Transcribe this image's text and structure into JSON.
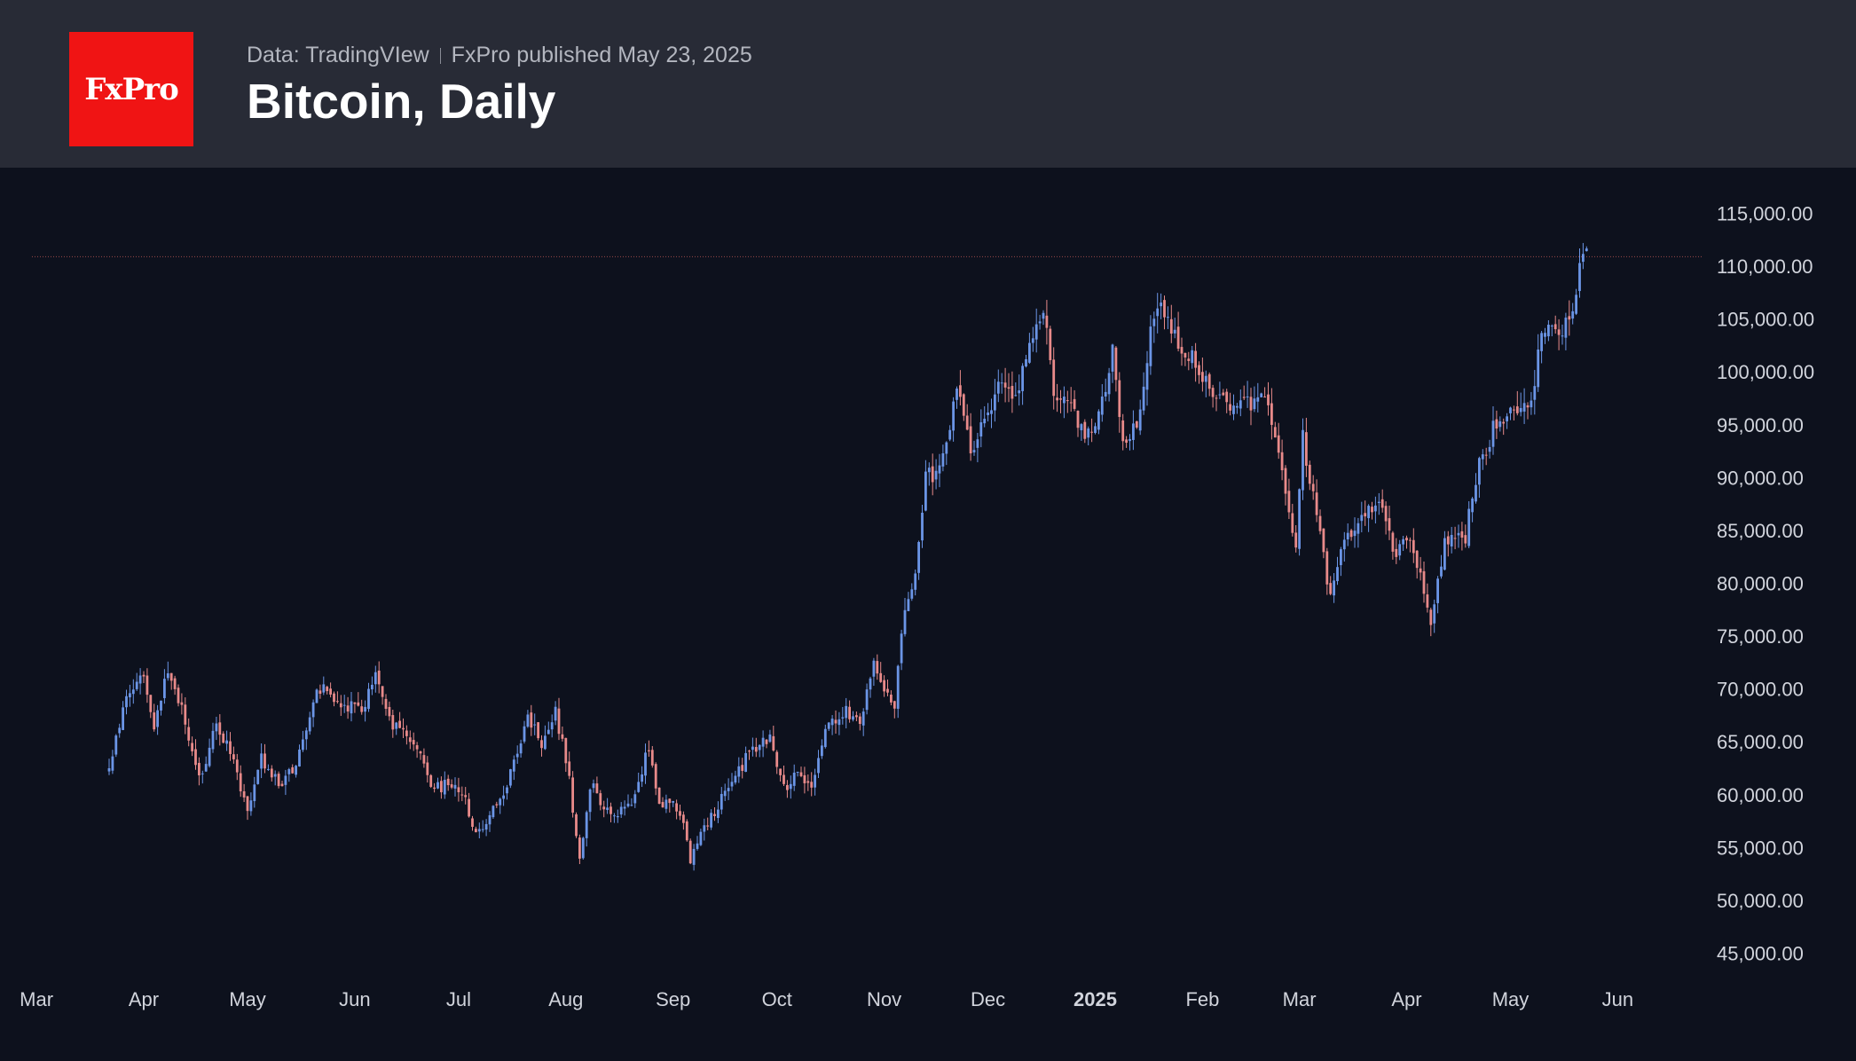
{
  "header": {
    "logo_text": "FxPro",
    "source_text": "Data: TradingVIew",
    "publisher_text": "FxPro published May 23, 2025",
    "title": "Bitcoin, Daily"
  },
  "colors": {
    "background": "#0d111d",
    "header_bg": "#282b36",
    "logo_bg": "#f01414",
    "up_candle": "#6b95e6",
    "down_candle": "#e88a8a",
    "axis_text": "#d1d4dc",
    "price_line": "#9b4a4a"
  },
  "chart_data": {
    "type": "candlestick",
    "title": "Bitcoin, Daily",
    "y_axis": {
      "ticks": [
        "115,000.00",
        "110,000.00",
        "105,000.00",
        "100,000.00",
        "95,000.00",
        "90,000.00",
        "85,000.00",
        "80,000.00",
        "75,000.00",
        "70,000.00",
        "65,000.00",
        "60,000.00",
        "55,000.00",
        "50,000.00",
        "45,000.00"
      ],
      "range": [
        42000,
        121000
      ]
    },
    "x_axis": {
      "labels": [
        "Mar",
        "Apr",
        "May",
        "Jun",
        "Jul",
        "Aug",
        "Sep",
        "Oct",
        "Nov",
        "Dec",
        "2025",
        "Feb",
        "Mar",
        "Apr",
        "May",
        "Jun"
      ],
      "bold_label": "2025",
      "range": [
        "2024-03-19",
        "2025-06-05"
      ]
    },
    "last_price_line": 110900,
    "close_anchors": [
      [
        "2024-03-22",
        62500
      ],
      [
        "2024-03-27",
        69500
      ],
      [
        "2024-04-01",
        71000
      ],
      [
        "2024-04-04",
        66500
      ],
      [
        "2024-04-08",
        72000
      ],
      [
        "2024-04-13",
        67000
      ],
      [
        "2024-04-17",
        61500
      ],
      [
        "2024-04-22",
        66500
      ],
      [
        "2024-04-26",
        64000
      ],
      [
        "2024-05-01",
        58000
      ],
      [
        "2024-05-05",
        63500
      ],
      [
        "2024-05-10",
        61000
      ],
      [
        "2024-05-15",
        62500
      ],
      [
        "2024-05-21",
        70500
      ],
      [
        "2024-05-27",
        68500
      ],
      [
        "2024-06-03",
        68000
      ],
      [
        "2024-06-07",
        71500
      ],
      [
        "2024-06-11",
        67000
      ],
      [
        "2024-06-18",
        65000
      ],
      [
        "2024-06-24",
        60500
      ],
      [
        "2024-06-28",
        61000
      ],
      [
        "2024-07-03",
        59500
      ],
      [
        "2024-07-06",
        56000
      ],
      [
        "2024-07-14",
        60000
      ],
      [
        "2024-07-21",
        67500
      ],
      [
        "2024-07-25",
        65000
      ],
      [
        "2024-07-29",
        68000
      ],
      [
        "2024-08-02",
        61500
      ],
      [
        "2024-08-05",
        53500
      ],
      [
        "2024-08-08",
        61000
      ],
      [
        "2024-08-14",
        58000
      ],
      [
        "2024-08-20",
        59500
      ],
      [
        "2024-08-25",
        64500
      ],
      [
        "2024-08-28",
        59500
      ],
      [
        "2024-09-03",
        58500
      ],
      [
        "2024-09-06",
        54000
      ],
      [
        "2024-09-12",
        58000
      ],
      [
        "2024-09-17",
        60500
      ],
      [
        "2024-09-23",
        64000
      ],
      [
        "2024-09-29",
        65500
      ],
      [
        "2024-10-03",
        60500
      ],
      [
        "2024-10-07",
        62500
      ],
      [
        "2024-10-11",
        60500
      ],
      [
        "2024-10-15",
        66500
      ],
      [
        "2024-10-21",
        68000
      ],
      [
        "2024-10-25",
        66500
      ],
      [
        "2024-10-29",
        72500
      ],
      [
        "2024-11-04",
        67500
      ],
      [
        "2024-11-06",
        75500
      ],
      [
        "2024-11-10",
        80500
      ],
      [
        "2024-11-13",
        90000
      ],
      [
        "2024-11-17",
        90500
      ],
      [
        "2024-11-22",
        98500
      ],
      [
        "2024-11-26",
        92500
      ],
      [
        "2024-12-01",
        96500
      ],
      [
        "2024-12-05",
        99000
      ],
      [
        "2024-12-09",
        97500
      ],
      [
        "2024-12-12",
        101000
      ],
      [
        "2024-12-17",
        106500
      ],
      [
        "2024-12-20",
        97000
      ],
      [
        "2024-12-24",
        98000
      ],
      [
        "2024-12-27",
        94500
      ],
      [
        "2025-01-01",
        94500
      ],
      [
        "2025-01-06",
        102000
      ],
      [
        "2025-01-09",
        93500
      ],
      [
        "2025-01-13",
        94500
      ],
      [
        "2025-01-17",
        104000
      ],
      [
        "2025-01-20",
        106000
      ],
      [
        "2025-01-23",
        103500
      ],
      [
        "2025-01-27",
        102000
      ],
      [
        "2025-02-01",
        100000
      ],
      [
        "2025-02-03",
        97500
      ],
      [
        "2025-02-09",
        97000
      ],
      [
        "2025-02-14",
        97000
      ],
      [
        "2025-02-20",
        97500
      ],
      [
        "2025-02-25",
        88500
      ],
      [
        "2025-02-28",
        84000
      ],
      [
        "2025-03-02",
        94000
      ],
      [
        "2025-03-05",
        88000
      ],
      [
        "2025-03-10",
        78500
      ],
      [
        "2025-03-14",
        84000
      ],
      [
        "2025-03-19",
        86500
      ],
      [
        "2025-03-24",
        87500
      ],
      [
        "2025-03-29",
        82500
      ],
      [
        "2025-04-02",
        84500
      ],
      [
        "2025-04-06",
        79000
      ],
      [
        "2025-04-08",
        76500
      ],
      [
        "2025-04-12",
        84000
      ],
      [
        "2025-04-18",
        84500
      ],
      [
        "2025-04-22",
        91500
      ],
      [
        "2025-04-26",
        94500
      ],
      [
        "2025-05-01",
        96500
      ],
      [
        "2025-05-07",
        97000
      ],
      [
        "2025-05-10",
        104000
      ],
      [
        "2025-05-15",
        103500
      ],
      [
        "2025-05-19",
        106000
      ],
      [
        "2025-05-21",
        109500
      ],
      [
        "2025-05-22",
        111500
      ],
      [
        "2025-05-23",
        111000
      ]
    ]
  }
}
